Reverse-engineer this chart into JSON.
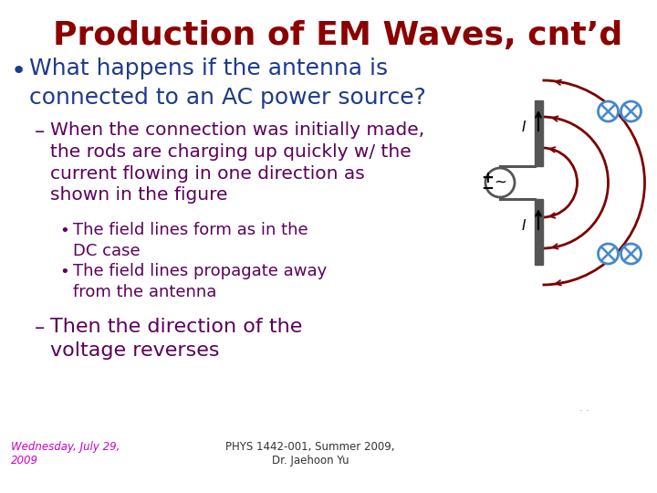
{
  "title": "Production of EM Waves, cnt’d",
  "title_color": "#8B0000",
  "bg_color": "#FFFFFF",
  "bullet1_color": "#1E3A8A",
  "sub_color": "#5B005B",
  "footer_color": "#CC00CC",
  "footer_left": "Wednesday, July 29,\n2009",
  "footer_right": "PHYS 1442-001, Summer 2009,\nDr. Jaehoon Yu",
  "arc_color": "#7B0000",
  "antenna_color": "#555555",
  "cross_color": "#4488CC",
  "text_color_black": "#000000"
}
